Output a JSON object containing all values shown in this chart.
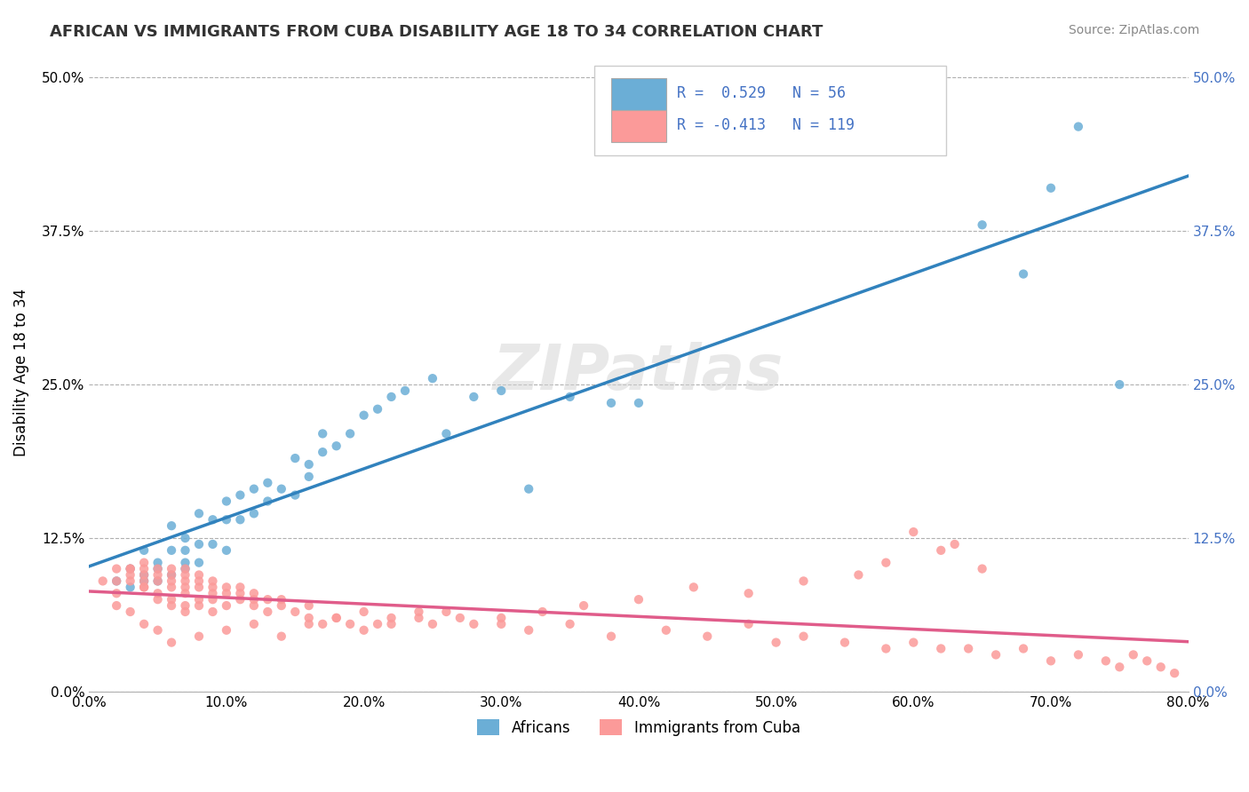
{
  "title": "AFRICAN VS IMMIGRANTS FROM CUBA DISABILITY AGE 18 TO 34 CORRELATION CHART",
  "source": "Source: ZipAtlas.com",
  "xlabel_ticks": [
    "0.0%",
    "10.0%",
    "20.0%",
    "30.0%",
    "40.0%",
    "50.0%",
    "60.0%",
    "70.0%",
    "80.0%"
  ],
  "ylabel_ticks": [
    "0.0%",
    "12.5%",
    "25.0%",
    "37.5%",
    "50.0%"
  ],
  "ylabel_label": "Disability Age 18 to 34",
  "legend_labels": [
    "Africans",
    "Immigrants from Cuba"
  ],
  "legend_r": [
    "R =  0.529",
    "R = -0.413"
  ],
  "legend_n": [
    "N = 56",
    "N = 119"
  ],
  "blue_color": "#6baed6",
  "pink_color": "#fb9a99",
  "blue_line_color": "#3182bd",
  "pink_line_color": "#e05c8a",
  "r_n_color": "#4472c4",
  "watermark": "ZIPatlas",
  "xlim": [
    0.0,
    0.8
  ],
  "ylim": [
    0.0,
    0.52
  ],
  "blue_R": 0.529,
  "blue_N": 56,
  "pink_R": -0.413,
  "pink_N": 119,
  "blue_scatter_x": [
    0.02,
    0.03,
    0.03,
    0.04,
    0.04,
    0.04,
    0.05,
    0.05,
    0.05,
    0.06,
    0.06,
    0.06,
    0.07,
    0.07,
    0.07,
    0.07,
    0.08,
    0.08,
    0.08,
    0.09,
    0.09,
    0.1,
    0.1,
    0.1,
    0.11,
    0.11,
    0.12,
    0.12,
    0.13,
    0.13,
    0.14,
    0.15,
    0.15,
    0.16,
    0.16,
    0.17,
    0.17,
    0.18,
    0.19,
    0.2,
    0.21,
    0.22,
    0.23,
    0.25,
    0.26,
    0.28,
    0.3,
    0.32,
    0.35,
    0.38,
    0.4,
    0.65,
    0.68,
    0.7,
    0.72,
    0.75
  ],
  "blue_scatter_y": [
    0.09,
    0.1,
    0.085,
    0.095,
    0.09,
    0.115,
    0.1,
    0.105,
    0.09,
    0.095,
    0.115,
    0.135,
    0.1,
    0.105,
    0.115,
    0.125,
    0.105,
    0.12,
    0.145,
    0.12,
    0.14,
    0.115,
    0.14,
    0.155,
    0.14,
    0.16,
    0.145,
    0.165,
    0.155,
    0.17,
    0.165,
    0.16,
    0.19,
    0.175,
    0.185,
    0.195,
    0.21,
    0.2,
    0.21,
    0.225,
    0.23,
    0.24,
    0.245,
    0.255,
    0.21,
    0.24,
    0.245,
    0.165,
    0.24,
    0.235,
    0.235,
    0.38,
    0.34,
    0.41,
    0.46,
    0.25
  ],
  "pink_scatter_x": [
    0.01,
    0.02,
    0.02,
    0.03,
    0.03,
    0.03,
    0.03,
    0.04,
    0.04,
    0.04,
    0.04,
    0.04,
    0.04,
    0.05,
    0.05,
    0.05,
    0.05,
    0.05,
    0.06,
    0.06,
    0.06,
    0.06,
    0.06,
    0.06,
    0.07,
    0.07,
    0.07,
    0.07,
    0.07,
    0.07,
    0.07,
    0.08,
    0.08,
    0.08,
    0.08,
    0.08,
    0.09,
    0.09,
    0.09,
    0.09,
    0.09,
    0.1,
    0.1,
    0.1,
    0.11,
    0.11,
    0.11,
    0.12,
    0.12,
    0.12,
    0.13,
    0.13,
    0.14,
    0.14,
    0.15,
    0.16,
    0.16,
    0.17,
    0.18,
    0.19,
    0.2,
    0.21,
    0.22,
    0.24,
    0.25,
    0.27,
    0.3,
    0.32,
    0.35,
    0.38,
    0.42,
    0.45,
    0.48,
    0.5,
    0.52,
    0.55,
    0.58,
    0.6,
    0.62,
    0.64,
    0.66,
    0.68,
    0.7,
    0.72,
    0.74,
    0.75,
    0.76,
    0.77,
    0.78,
    0.79,
    0.6,
    0.62,
    0.63,
    0.65,
    0.58,
    0.56,
    0.52,
    0.48,
    0.44,
    0.4,
    0.36,
    0.33,
    0.3,
    0.28,
    0.26,
    0.24,
    0.22,
    0.2,
    0.18,
    0.16,
    0.14,
    0.12,
    0.1,
    0.08,
    0.06,
    0.05,
    0.04,
    0.03,
    0.02,
    0.02
  ],
  "pink_scatter_y": [
    0.09,
    0.09,
    0.1,
    0.095,
    0.1,
    0.1,
    0.09,
    0.085,
    0.095,
    0.1,
    0.105,
    0.09,
    0.085,
    0.09,
    0.095,
    0.1,
    0.08,
    0.075,
    0.09,
    0.095,
    0.085,
    0.1,
    0.075,
    0.07,
    0.09,
    0.095,
    0.085,
    0.1,
    0.07,
    0.065,
    0.08,
    0.085,
    0.09,
    0.095,
    0.07,
    0.075,
    0.085,
    0.09,
    0.08,
    0.065,
    0.075,
    0.08,
    0.085,
    0.07,
    0.08,
    0.075,
    0.085,
    0.075,
    0.07,
    0.08,
    0.075,
    0.065,
    0.07,
    0.075,
    0.065,
    0.06,
    0.07,
    0.055,
    0.06,
    0.055,
    0.065,
    0.055,
    0.06,
    0.065,
    0.055,
    0.06,
    0.055,
    0.05,
    0.055,
    0.045,
    0.05,
    0.045,
    0.055,
    0.04,
    0.045,
    0.04,
    0.035,
    0.04,
    0.035,
    0.035,
    0.03,
    0.035,
    0.025,
    0.03,
    0.025,
    0.02,
    0.03,
    0.025,
    0.02,
    0.015,
    0.13,
    0.115,
    0.12,
    0.1,
    0.105,
    0.095,
    0.09,
    0.08,
    0.085,
    0.075,
    0.07,
    0.065,
    0.06,
    0.055,
    0.065,
    0.06,
    0.055,
    0.05,
    0.06,
    0.055,
    0.045,
    0.055,
    0.05,
    0.045,
    0.04,
    0.05,
    0.055,
    0.065,
    0.07,
    0.08
  ]
}
